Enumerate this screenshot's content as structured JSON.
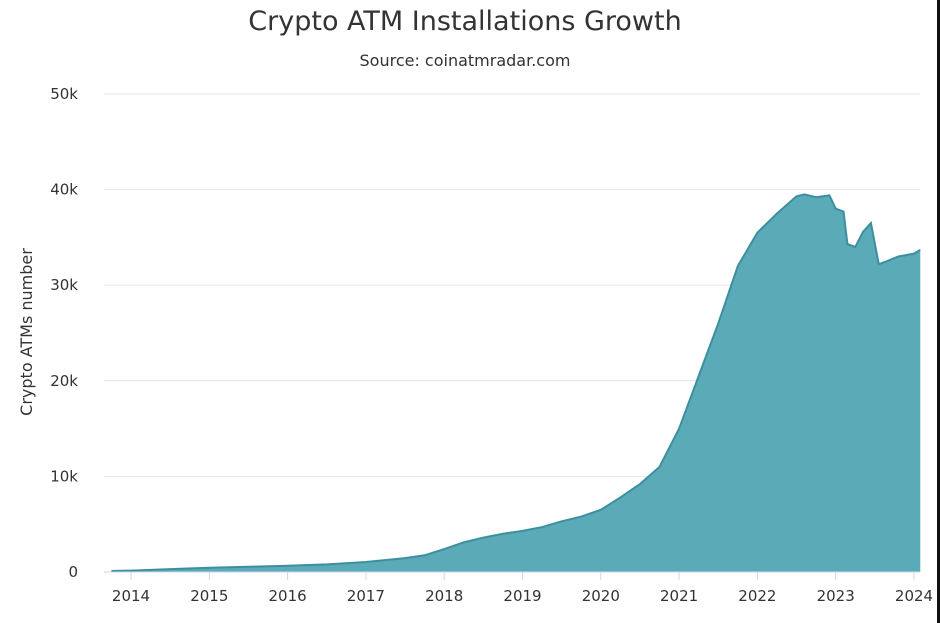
{
  "chart_data": {
    "type": "area",
    "title": "Crypto ATM Installations Growth",
    "subtitle": "Source: coinatmradar.com",
    "xlabel": "",
    "ylabel": "Crypto ATMs number",
    "ylim": [
      0,
      50000
    ],
    "xlim": [
      2013.75,
      2024.08
    ],
    "grid": true,
    "legend": "none",
    "color": "#5aaab7",
    "line_color": "#3d8fa0",
    "y_ticks": [
      0,
      10000,
      20000,
      30000,
      40000,
      50000
    ],
    "y_tick_labels": [
      "0",
      "10k",
      "20k",
      "30k",
      "40k",
      "50k"
    ],
    "x_ticks": [
      2014,
      2015,
      2016,
      2017,
      2018,
      2019,
      2020,
      2021,
      2022,
      2023,
      2024
    ],
    "x_tick_labels": [
      "2014",
      "2015",
      "2016",
      "2017",
      "2018",
      "2019",
      "2020",
      "2021",
      "2022",
      "2023",
      "2024"
    ],
    "series": [
      {
        "x": [
          2013.75,
          2014.0,
          2014.5,
          2015.0,
          2015.5,
          2016.0,
          2016.5,
          2017.0,
          2017.5,
          2017.75,
          2018.0,
          2018.25,
          2018.5,
          2018.75,
          2019.0,
          2019.25,
          2019.5,
          2019.75,
          2020.0,
          2020.25,
          2020.5,
          2020.75,
          2021.0,
          2021.25,
          2021.5,
          2021.75,
          2022.0,
          2022.25,
          2022.5,
          2022.6,
          2022.75,
          2022.92,
          2023.0,
          2023.1,
          2023.15,
          2023.25,
          2023.35,
          2023.45,
          2023.55,
          2023.65,
          2023.8,
          2024.0,
          2024.08
        ],
        "y": [
          100,
          150,
          300,
          450,
          550,
          650,
          800,
          1050,
          1450,
          1750,
          2400,
          3100,
          3600,
          4000,
          4300,
          4700,
          5300,
          5800,
          6500,
          7800,
          9200,
          11000,
          15000,
          20500,
          26000,
          32000,
          35500,
          37500,
          39300,
          39500,
          39200,
          39400,
          38000,
          37700,
          34300,
          34000,
          35600,
          36500,
          32200,
          32500,
          33000,
          33300,
          33700
        ]
      }
    ]
  }
}
